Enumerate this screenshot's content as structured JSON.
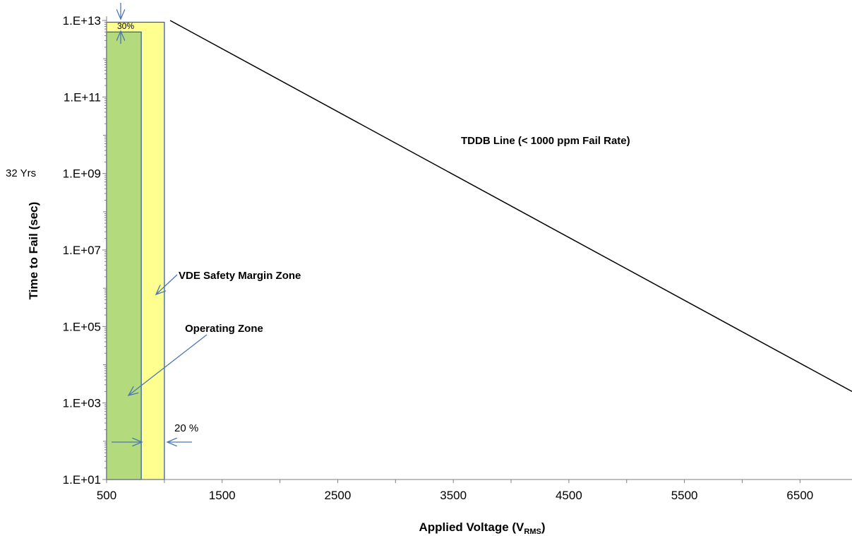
{
  "chart_data": {
    "type": "line",
    "xlabel": "Applied Voltage (V",
    "xlabel_sub": "RMS",
    "xlabel_close": ")",
    "ylabel": "Time to Fail (sec)",
    "y_scale": "log",
    "xlim": [
      500,
      6950
    ],
    "ylim": [
      10,
      10000000000000
    ],
    "x_ticks": [
      500,
      1500,
      2500,
      3500,
      4500,
      5500,
      6500
    ],
    "x_tick_labels": [
      "500",
      "1500",
      "2500",
      "3500",
      "4500",
      "5500",
      "6500"
    ],
    "y_ticks": [
      10,
      1000,
      100000,
      10000000,
      1000000000,
      100000000000,
      10000000000000
    ],
    "y_tick_labels": [
      "1.E+01",
      "1.E+03",
      "1.E+05",
      "1.E+07",
      "1.E+09",
      "1.E+11",
      "1.E+13"
    ],
    "grid": false,
    "series": [
      {
        "name": "TDDB Line (< 1000 ppm Fail Rate)",
        "x": [
          1050,
          6950
        ],
        "y": [
          10000000000000,
          2000
        ],
        "color": "#000000"
      }
    ],
    "zones": [
      {
        "name": "Operating  Zone",
        "x": [
          500,
          800
        ],
        "y_top": 5000000000000,
        "color": "#b3da7d"
      },
      {
        "name": "VDE Safety Margin Zone",
        "x": [
          500,
          1000
        ],
        "y_top": 9000000000000,
        "color": "#ffff8f"
      }
    ],
    "annotations": {
      "tddb_label": "TDDB Line (< 1000 ppm Fail Rate)",
      "vde_label": "VDE Safety Margin Zone",
      "operating_label": "Operating  Zone",
      "margin_20": "20 %",
      "margin_30": "30%",
      "yrs_label": "32 Yrs"
    },
    "colors": {
      "arrow": "#4a76b8",
      "zone_border": "#3a5fa8"
    }
  }
}
